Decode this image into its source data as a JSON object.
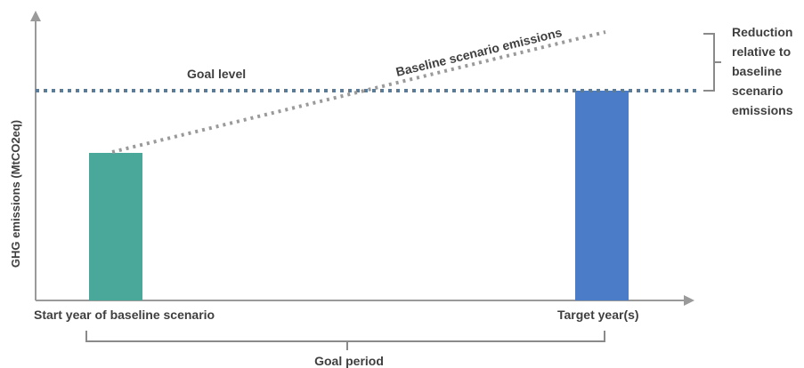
{
  "labels": {
    "y_axis": "GHG emissions (MtCO2eq)",
    "goal_level": "Goal level",
    "baseline_emissions": "Baseline scenario emissions",
    "reduction": [
      "Reduction",
      "relative to",
      "baseline",
      "scenario",
      "emissions"
    ],
    "start_year": "Start year of baseline scenario",
    "target_year": "Target year(s)",
    "goal_period": "Goal period"
  },
  "colors": {
    "start_bar": "#4aa89a",
    "target_bar": "#4a7cc7",
    "goal_line": "#5b7b96",
    "baseline_line": "#9a9a9a",
    "axis": "#9a9a9a",
    "bracket": "#8a8a8a",
    "text": "#3f3f3f"
  }
}
